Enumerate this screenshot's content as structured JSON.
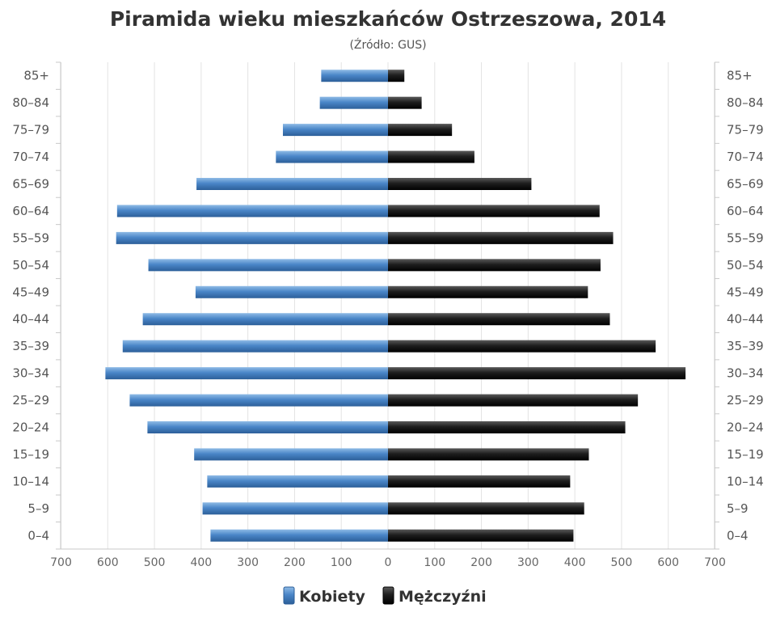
{
  "chart_data": {
    "type": "bar",
    "orientation": "horizontal",
    "title": "Piramida wieku mieszkańców Ostrzeszowa, 2014",
    "subtitle": "(Źródło: GUS)",
    "categories": [
      "85+",
      "80–84",
      "75–79",
      "70–74",
      "65–69",
      "60–64",
      "55–59",
      "50–54",
      "45–49",
      "40–44",
      "35–39",
      "30–34",
      "25–29",
      "20–24",
      "15–19",
      "10–14",
      "5–9",
      "0–4"
    ],
    "series": [
      {
        "name": "Kobiety",
        "side": "left",
        "color": "#4a86c8",
        "values": [
          143,
          146,
          225,
          240,
          410,
          580,
          582,
          513,
          412,
          525,
          568,
          605,
          553,
          515,
          415,
          387,
          397,
          380
        ]
      },
      {
        "name": "Mężczyźni",
        "side": "right",
        "color": "#1a1a1a",
        "values": [
          35,
          72,
          137,
          185,
          307,
          453,
          482,
          455,
          428,
          475,
          573,
          637,
          535,
          508,
          430,
          390,
          420,
          397
        ]
      }
    ],
    "xlim": [
      -700,
      700
    ],
    "xticks": [
      "700",
      "600",
      "500",
      "400",
      "300",
      "200",
      "100",
      "0",
      "100",
      "200",
      "300",
      "400",
      "500",
      "600",
      "700"
    ],
    "grid": true,
    "legend_position": "bottom-center"
  }
}
